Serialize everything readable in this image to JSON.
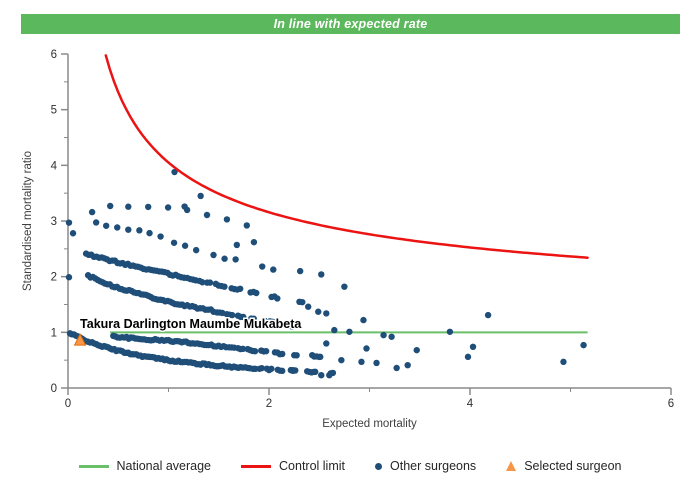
{
  "header": {
    "title": "In line with expected rate",
    "bg_color": "#5cb85c",
    "text_color": "#ffffff"
  },
  "chart_data": {
    "type": "scatter",
    "title": "",
    "xlabel": "Expected mortality",
    "ylabel": "Standardised mortality ratio",
    "xlim": [
      0,
      6
    ],
    "ylim": [
      0,
      6
    ],
    "x_major_ticks": [
      0,
      2,
      4,
      6
    ],
    "x_minor_ticks": [
      1,
      3,
      5
    ],
    "y_major_ticks": [
      0,
      1,
      2,
      3,
      4,
      5,
      6
    ],
    "y_minor_ticks": [
      0.5,
      1.5,
      2.5,
      3.5,
      4.5,
      5.5
    ],
    "grid": false,
    "legend_position": "bottom",
    "axis_color": "#8a8a8a",
    "tick_label_color": "#303030",
    "national_average": {
      "label": "National average",
      "y": 1.0,
      "x_start": 0.42,
      "x_end": 5.17,
      "color": "#6abf69"
    },
    "control_limit": {
      "label": "Control limit",
      "formula": "y = 1 + 3.05/sqrt(x)",
      "coef": 3.05,
      "offset": 1.0,
      "x_start": 0.376,
      "x_end": 5.17,
      "color": "#ec1313"
    },
    "other_surgeons": {
      "label": "Other surgeons",
      "color": "#1f4e79",
      "marker": "circle",
      "radius": 3.2,
      "bands": [
        {
          "x_start": 0.02,
          "x_end": 2.62,
          "step": 0.02,
          "sparse_from": 1.5,
          "growth": 12,
          "jitter": 0.03,
          "pts": [
            [
              0.02,
              0.98
            ],
            [
              0.25,
              0.8
            ],
            [
              0.5,
              0.667
            ],
            [
              0.75,
              0.571
            ],
            [
              1.0,
              0.5
            ],
            [
              1.3,
              0.435
            ],
            [
              1.6,
              0.385
            ],
            [
              1.9,
              0.345
            ],
            [
              2.2,
              0.313
            ],
            [
              2.4,
              0.294
            ],
            [
              2.62,
              0.276
            ]
          ]
        },
        {
          "x_start": 0.45,
          "x_end": 2.55,
          "step": 0.022,
          "sparse_from": 1.3,
          "growth": 12,
          "jitter": 0.03,
          "pts": [
            [
              0.45,
              0.93
            ],
            [
              0.7,
              0.88
            ],
            [
              1.0,
              0.85
            ],
            [
              1.3,
              0.8
            ],
            [
              1.6,
              0.73
            ],
            [
              1.95,
              0.655
            ],
            [
              2.2,
              0.6
            ],
            [
              2.55,
              0.545
            ]
          ]
        },
        {
          "x_start": 0.2,
          "x_end": 2.4,
          "step": 0.024,
          "sparse_from": 1.15,
          "growth": 12,
          "jitter": 0.035,
          "pts": [
            [
              0.2,
              2.02
            ],
            [
              0.45,
              1.83
            ],
            [
              0.7,
              1.7
            ],
            [
              0.9,
              1.6
            ],
            [
              1.11,
              1.5
            ],
            [
              1.35,
              1.42
            ],
            [
              1.6,
              1.33
            ],
            [
              1.9,
              1.22
            ],
            [
              2.15,
              1.14
            ],
            [
              2.4,
              1.07
            ]
          ]
        },
        {
          "x_start": 0.18,
          "x_end": 2.37,
          "step": 0.026,
          "sparse_from": 0.95,
          "growth": 13,
          "jitter": 0.035,
          "pts": [
            [
              0.18,
              2.4
            ],
            [
              0.45,
              2.28
            ],
            [
              0.7,
              2.17
            ],
            [
              1.0,
              2.05
            ],
            [
              1.25,
              1.95
            ],
            [
              1.5,
              1.85
            ],
            [
              1.78,
              1.74
            ],
            [
              2.1,
              1.61
            ],
            [
              2.37,
              1.52
            ]
          ]
        },
        {
          "x_start": 0.28,
          "x_end": 2.1,
          "step": 0.1,
          "sparse_from": 0.28,
          "growth": 4,
          "jitter": 0.05,
          "pts": [
            [
              0.28,
              2.97
            ],
            [
              0.5,
              2.9
            ],
            [
              0.75,
              2.8
            ],
            [
              1.0,
              2.65
            ],
            [
              1.3,
              2.47
            ],
            [
              1.6,
              2.32
            ],
            [
              1.9,
              2.18
            ],
            [
              2.1,
              2.1
            ]
          ]
        },
        {
          "x_start": 0.42,
          "x_end": 1.8,
          "step": 0.18,
          "sparse_from": 0.42,
          "growth": 3,
          "jitter": 0.06,
          "pts": [
            [
              0.42,
              3.28
            ],
            [
              0.75,
              3.27
            ],
            [
              1.1,
              3.22
            ],
            [
              1.5,
              3.05
            ],
            [
              1.8,
              2.88
            ]
          ]
        }
      ],
      "points": [
        [
          0.01,
          2.97
        ],
        [
          0.05,
          2.78
        ],
        [
          0.01,
          1.99
        ],
        [
          0.03,
          0.97
        ],
        [
          0.24,
          3.16
        ],
        [
          1.06,
          3.88
        ],
        [
          1.32,
          3.45
        ],
        [
          1.16,
          3.26
        ],
        [
          1.68,
          2.57
        ],
        [
          1.85,
          2.62
        ],
        [
          2.31,
          2.1
        ],
        [
          2.52,
          2.04
        ],
        [
          2.75,
          1.82
        ],
        [
          2.39,
          1.46
        ],
        [
          2.49,
          1.37
        ],
        [
          2.57,
          1.34
        ],
        [
          2.94,
          1.22
        ],
        [
          2.65,
          1.04
        ],
        [
          2.8,
          1.01
        ],
        [
          3.14,
          0.95
        ],
        [
          3.22,
          0.92
        ],
        [
          3.8,
          1.01
        ],
        [
          4.18,
          1.31
        ],
        [
          2.57,
          0.8
        ],
        [
          2.97,
          0.71
        ],
        [
          3.47,
          0.68
        ],
        [
          4.03,
          0.74
        ],
        [
          3.98,
          0.56
        ],
        [
          5.13,
          0.77
        ],
        [
          4.93,
          0.47
        ],
        [
          2.43,
          0.59
        ],
        [
          2.51,
          0.56
        ],
        [
          2.72,
          0.5
        ],
        [
          2.92,
          0.47
        ],
        [
          3.07,
          0.45
        ],
        [
          3.38,
          0.41
        ],
        [
          3.27,
          0.36
        ],
        [
          2.24,
          0.32
        ],
        [
          2.46,
          0.29
        ],
        [
          2.52,
          0.23
        ],
        [
          2.6,
          0.23
        ]
      ]
    },
    "selected_surgeon": {
      "label": "Selected surgeon",
      "name": "Takura Darlington Maumbe Mukabeta",
      "x": 0.12,
      "y": 0.85,
      "color": "#f79646",
      "edge_color": "#e36c09",
      "marker": "triangle"
    },
    "annotation": {
      "text": "Takura Darlington Maumbe Mukabeta",
      "x": 0.12,
      "y": 1.08,
      "color": "#000000"
    }
  },
  "legend": {
    "items": [
      {
        "label": "National average",
        "type": "line",
        "color": "#6abf69"
      },
      {
        "label": "Control limit",
        "type": "line",
        "color": "#ec1313"
      },
      {
        "label": "Other surgeons",
        "type": "dot",
        "color": "#1f4e79"
      },
      {
        "label": "Selected surgeon",
        "type": "triangle",
        "color": "#f79646"
      }
    ]
  }
}
